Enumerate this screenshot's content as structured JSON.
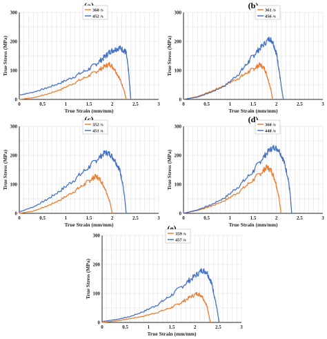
{
  "colors": {
    "orange": "#ED7D31",
    "blue": "#4472C4",
    "grid": "#d9d9d9",
    "axis": "#222222"
  },
  "chart_data": [
    {
      "type": "line",
      "panel": "(a)",
      "xlabel": "True Strain (mm/mm)",
      "ylabel": "True Stress (MPa)",
      "xlim": [
        0,
        3
      ],
      "ylim": [
        0,
        300
      ],
      "xticks": [
        "0",
        "0.5",
        "1",
        "1.5",
        "2",
        "2.5",
        "3"
      ],
      "yticks": [
        "0",
        "100",
        "200",
        "300"
      ],
      "grid": true,
      "legend_position": "top-right",
      "series": [
        {
          "name": "360 /s",
          "color": "#ED7D31",
          "points": [
            [
              0,
              0
            ],
            [
              0.3,
              6
            ],
            [
              0.6,
              18
            ],
            [
              0.9,
              35
            ],
            [
              1.2,
              58
            ],
            [
              1.5,
              82
            ],
            [
              1.7,
              100
            ],
            [
              1.85,
              115
            ],
            [
              1.95,
              122
            ],
            [
              2.05,
              105
            ],
            [
              2.15,
              75
            ],
            [
              2.25,
              35
            ],
            [
              2.3,
              0
            ]
          ]
        },
        {
          "name": "452 /s",
          "color": "#4472C4",
          "points": [
            [
              0,
              15
            ],
            [
              0.3,
              25
            ],
            [
              0.6,
              40
            ],
            [
              0.9,
              58
            ],
            [
              1.2,
              80
            ],
            [
              1.5,
              105
            ],
            [
              1.7,
              128
            ],
            [
              1.85,
              148
            ],
            [
              1.95,
              165
            ],
            [
              2.05,
              172
            ],
            [
              2.15,
              178
            ],
            [
              2.25,
              170
            ],
            [
              2.3,
              160
            ],
            [
              2.35,
              100
            ],
            [
              2.38,
              40
            ],
            [
              2.4,
              0
            ]
          ]
        }
      ]
    },
    {
      "type": "line",
      "panel": "(b)",
      "xlabel": "True Strain (mm/mm)",
      "ylabel": "True Stress (MPa)",
      "xlim": [
        0,
        3
      ],
      "ylim": [
        0,
        300
      ],
      "xticks": [
        "0",
        "0.5",
        "1",
        "1.5",
        "2",
        "2.5",
        "3"
      ],
      "yticks": [
        "0",
        "100",
        "200",
        "300"
      ],
      "grid": true,
      "legend_position": "top-right",
      "series": [
        {
          "name": "361 /s",
          "color": "#ED7D31",
          "points": [
            [
              0,
              0
            ],
            [
              0.3,
              10
            ],
            [
              0.6,
              28
            ],
            [
              0.9,
              50
            ],
            [
              1.2,
              75
            ],
            [
              1.4,
              95
            ],
            [
              1.55,
              110
            ],
            [
              1.65,
              120
            ],
            [
              1.75,
              105
            ],
            [
              1.82,
              70
            ],
            [
              1.88,
              35
            ],
            [
              1.92,
              0
            ]
          ]
        },
        {
          "name": "456 /s",
          "color": "#4472C4",
          "points": [
            [
              0,
              0
            ],
            [
              0.3,
              8
            ],
            [
              0.6,
              25
            ],
            [
              0.9,
              48
            ],
            [
              1.2,
              90
            ],
            [
              1.4,
              130
            ],
            [
              1.55,
              160
            ],
            [
              1.7,
              185
            ],
            [
              1.85,
              210
            ],
            [
              1.92,
              200
            ],
            [
              2.0,
              160
            ],
            [
              2.05,
              110
            ],
            [
              2.1,
              50
            ],
            [
              2.15,
              0
            ]
          ]
        }
      ]
    },
    {
      "type": "line",
      "panel": "(c)",
      "xlabel": "True Strain (mm/mm)",
      "ylabel": "True Stress (MPa)",
      "xlim": [
        0,
        3
      ],
      "ylim": [
        0,
        300
      ],
      "xticks": [
        "0",
        "0.5",
        "1",
        "1.5",
        "2",
        "2.5",
        "3"
      ],
      "yticks": [
        "0",
        "100",
        "200",
        "300"
      ],
      "grid": true,
      "legend_position": "top-right",
      "series": [
        {
          "name": "352 /s",
          "color": "#ED7D31",
          "points": [
            [
              0,
              0
            ],
            [
              0.3,
              8
            ],
            [
              0.6,
              25
            ],
            [
              0.9,
              48
            ],
            [
              1.2,
              78
            ],
            [
              1.4,
              100
            ],
            [
              1.55,
              118
            ],
            [
              1.65,
              128
            ],
            [
              1.75,
              115
            ],
            [
              1.85,
              85
            ],
            [
              1.95,
              40
            ],
            [
              2.0,
              0
            ]
          ]
        },
        {
          "name": "451 /s",
          "color": "#4472C4",
          "points": [
            [
              0,
              5
            ],
            [
              0.3,
              22
            ],
            [
              0.6,
              48
            ],
            [
              0.9,
              80
            ],
            [
              1.2,
              118
            ],
            [
              1.5,
              160
            ],
            [
              1.7,
              190
            ],
            [
              1.85,
              210
            ],
            [
              1.95,
              205
            ],
            [
              2.05,
              185
            ],
            [
              2.15,
              155
            ],
            [
              2.22,
              110
            ],
            [
              2.27,
              50
            ],
            [
              2.3,
              0
            ]
          ]
        }
      ]
    },
    {
      "type": "line",
      "panel": "(d)",
      "xlabel": "True Strain (mm/mm)",
      "ylabel": "True Stress (MPa)",
      "xlim": [
        0,
        3
      ],
      "ylim": [
        0,
        300
      ],
      "xticks": [
        "0",
        "0.5",
        "1",
        "1.5",
        "2",
        "2.5",
        "3"
      ],
      "yticks": [
        "0",
        "100",
        "200",
        "300"
      ],
      "grid": true,
      "legend_position": "top-right",
      "series": [
        {
          "name": "360 /s",
          "color": "#ED7D31",
          "points": [
            [
              0,
              0
            ],
            [
              0.3,
              10
            ],
            [
              0.6,
              25
            ],
            [
              0.9,
              45
            ],
            [
              1.2,
              75
            ],
            [
              1.5,
              115
            ],
            [
              1.7,
              145
            ],
            [
              1.8,
              160
            ],
            [
              1.9,
              145
            ],
            [
              1.98,
              110
            ],
            [
              2.05,
              60
            ],
            [
              2.1,
              0
            ]
          ]
        },
        {
          "name": "448 /s",
          "color": "#4472C4",
          "points": [
            [
              0,
              0
            ],
            [
              0.3,
              12
            ],
            [
              0.6,
              30
            ],
            [
              0.9,
              55
            ],
            [
              1.2,
              95
            ],
            [
              1.5,
              145
            ],
            [
              1.7,
              190
            ],
            [
              1.85,
              218
            ],
            [
              1.95,
              228
            ],
            [
              2.05,
              220
            ],
            [
              2.15,
              185
            ],
            [
              2.25,
              125
            ],
            [
              2.3,
              60
            ],
            [
              2.33,
              0
            ]
          ]
        }
      ]
    },
    {
      "type": "line",
      "panel": "(e)",
      "xlabel": "True Strain (mm/mm)",
      "ylabel": "True Stress (MPa)",
      "xlim": [
        0,
        3
      ],
      "ylim": [
        0,
        300
      ],
      "xticks": [
        "0",
        "0.5",
        "1",
        "1.5",
        "2",
        "2.5",
        "3"
      ],
      "yticks": [
        "0",
        "100",
        "200",
        "300"
      ],
      "grid": true,
      "legend_position": "top-right",
      "series": [
        {
          "name": "359 /s",
          "color": "#ED7D31",
          "points": [
            [
              0,
              0
            ],
            [
              0.3,
              5
            ],
            [
              0.6,
              13
            ],
            [
              0.9,
              22
            ],
            [
              1.2,
              35
            ],
            [
              1.5,
              52
            ],
            [
              1.7,
              68
            ],
            [
              1.9,
              88
            ],
            [
              2.05,
              100
            ],
            [
              2.15,
              92
            ],
            [
              2.25,
              60
            ],
            [
              2.3,
              25
            ],
            [
              2.33,
              0
            ]
          ]
        },
        {
          "name": "457 /s",
          "color": "#4472C4",
          "points": [
            [
              0,
              3
            ],
            [
              0.3,
              10
            ],
            [
              0.6,
              20
            ],
            [
              0.9,
              38
            ],
            [
              1.2,
              62
            ],
            [
              1.5,
              95
            ],
            [
              1.8,
              135
            ],
            [
              2.0,
              160
            ],
            [
              2.15,
              180
            ],
            [
              2.25,
              175
            ],
            [
              2.35,
              140
            ],
            [
              2.42,
              90
            ],
            [
              2.48,
              40
            ],
            [
              2.52,
              0
            ]
          ]
        }
      ]
    }
  ]
}
